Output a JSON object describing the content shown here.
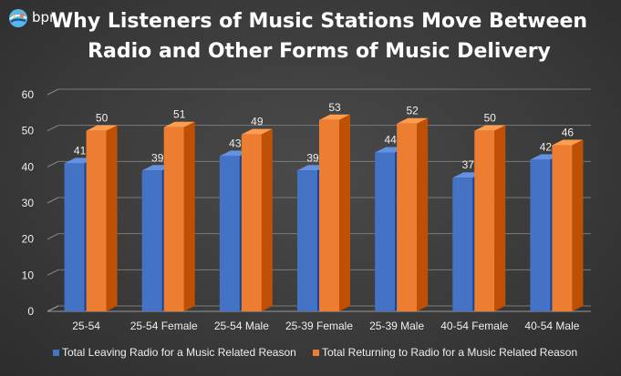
{
  "brand": {
    "logo_text": "bpr"
  },
  "chart_data": {
    "type": "bar",
    "title_lines": [
      "Why Listeners of Music Stations Move Between",
      "Radio and Other Forms of Music Delivery"
    ],
    "categories": [
      "25-54",
      "25-54 Female",
      "25-54 Male",
      "25-39 Female",
      "25-39 Male",
      "40-54 Female",
      "40-54 Male"
    ],
    "series": [
      {
        "name": "Total Leaving Radio for a Music Related Reason",
        "values": [
          41,
          39,
          43,
          39,
          44,
          37,
          42
        ],
        "color": "#4472C4"
      },
      {
        "name": "Total Returning to Radio for a Music Related Reason",
        "values": [
          50,
          51,
          49,
          53,
          52,
          50,
          46
        ],
        "color": "#ED7D31"
      }
    ],
    "y_ticks": [
      0,
      10,
      20,
      30,
      40,
      50,
      60
    ],
    "ylim": [
      0,
      60
    ],
    "grid": true,
    "legend_position": "bottom",
    "style": "3d-clustered"
  }
}
